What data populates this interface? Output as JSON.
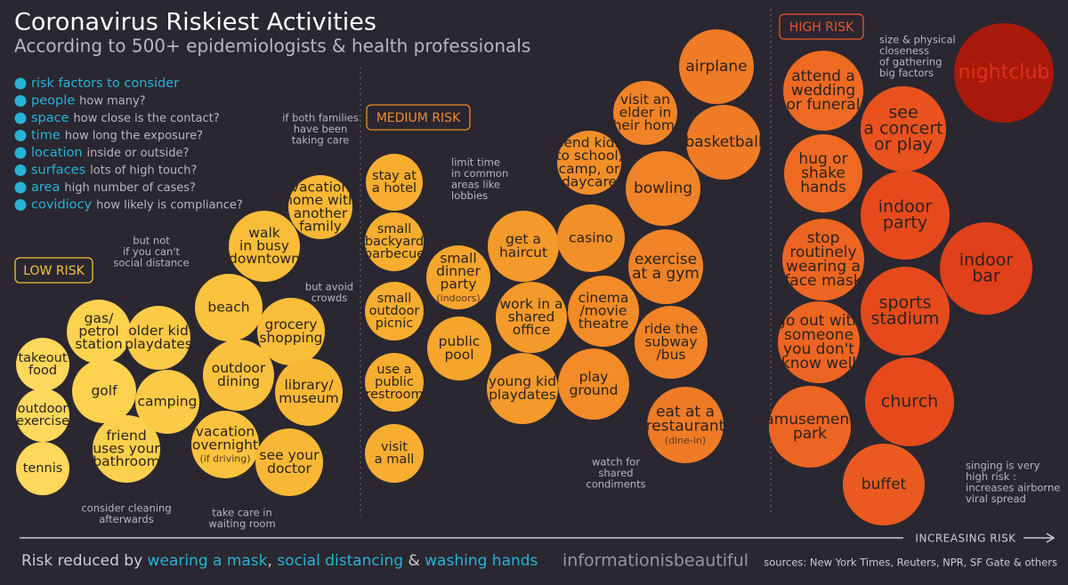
{
  "header": {
    "title": "Coronavirus Riskiest Activities",
    "subtitle": "According to 500+ epidemiologists & health professionals"
  },
  "risk_factors": {
    "heading": "risk factors to consider",
    "items": [
      {
        "term": "people",
        "desc": "how many?"
      },
      {
        "term": "space",
        "desc": "how close is the contact?"
      },
      {
        "term": "time",
        "desc": "how long the exposure?"
      },
      {
        "term": "location",
        "desc": "inside or outside?"
      },
      {
        "term": "surfaces",
        "desc": "lots of high touch?"
      },
      {
        "term": "area",
        "desc": "high number of cases?"
      },
      {
        "term": "covidiocy",
        "desc": "how likely is compliance?"
      }
    ]
  },
  "sections": [
    {
      "label": "LOW RISK",
      "bubbles": [
        {
          "lines": [
            "takeout",
            "food"
          ]
        },
        {
          "lines": [
            "outdoor",
            "exercise"
          ]
        },
        {
          "lines": [
            "tennis"
          ]
        },
        {
          "lines": [
            "gas/",
            "petrol",
            "station"
          ]
        },
        {
          "lines": [
            "golf"
          ]
        },
        {
          "lines": [
            "friend",
            "uses your",
            "bathroom"
          ]
        },
        {
          "lines": [
            "older kid",
            "playdates"
          ]
        },
        {
          "lines": [
            "camping"
          ]
        },
        {
          "lines": [
            "beach"
          ]
        },
        {
          "lines": [
            "walk",
            "in busy",
            "downtown"
          ]
        },
        {
          "lines": [
            "vacation",
            "home with",
            "another",
            "family"
          ]
        },
        {
          "lines": [
            "grocery",
            "shopping"
          ]
        },
        {
          "lines": [
            "outdoor",
            "dining"
          ]
        },
        {
          "lines": [
            "library/",
            "museum"
          ]
        },
        {
          "lines": [
            "vacation",
            "overnight"
          ],
          "note": "(if driving)"
        },
        {
          "lines": [
            "see your",
            "doctor"
          ]
        }
      ]
    },
    {
      "label": "MEDIUM RISK",
      "bubbles": [
        {
          "lines": [
            "stay at",
            "a hotel"
          ]
        },
        {
          "lines": [
            "small",
            "backyard",
            "barbecue"
          ]
        },
        {
          "lines": [
            "small",
            "outdoor",
            "picnic"
          ]
        },
        {
          "lines": [
            "use a",
            "public",
            "restroom"
          ]
        },
        {
          "lines": [
            "visit",
            "a mall"
          ]
        },
        {
          "lines": [
            "small",
            "dinner",
            "party"
          ],
          "note": "(indoors)"
        },
        {
          "lines": [
            "public",
            "pool"
          ]
        },
        {
          "lines": [
            "get a",
            "haircut"
          ]
        },
        {
          "lines": [
            "work in a",
            "shared",
            "office"
          ]
        },
        {
          "lines": [
            "young kid",
            "playdates"
          ]
        },
        {
          "lines": [
            "send kids",
            "to school,",
            "camp, or",
            "daycare"
          ]
        },
        {
          "lines": [
            "casino"
          ]
        },
        {
          "lines": [
            "cinema",
            "/movie",
            "theatre"
          ]
        },
        {
          "lines": [
            "play",
            "ground"
          ]
        },
        {
          "lines": [
            "visit an",
            "elder in",
            "their home"
          ]
        },
        {
          "lines": [
            "airplane"
          ]
        },
        {
          "lines": [
            "bowling"
          ]
        },
        {
          "lines": [
            "basketball"
          ]
        },
        {
          "lines": [
            "exercise",
            "at a gym"
          ]
        },
        {
          "lines": [
            "ride the",
            "subway",
            "/bus"
          ]
        },
        {
          "lines": [
            "eat at a",
            "restaurant"
          ],
          "note": "(dine-in)"
        }
      ]
    },
    {
      "label": "HIGH RISK",
      "bubbles": [
        {
          "lines": [
            "attend a",
            "wedding",
            "or funeral"
          ]
        },
        {
          "lines": [
            "hug or",
            "shake",
            "hands"
          ]
        },
        {
          "lines": [
            "stop",
            "routinely",
            "wearing a",
            "face mask"
          ]
        },
        {
          "lines": [
            "go out with",
            "someone",
            "you don't",
            "know well"
          ]
        },
        {
          "lines": [
            "amusement",
            "park"
          ]
        },
        {
          "lines": [
            "buffet"
          ]
        },
        {
          "lines": [
            "nightclub"
          ]
        },
        {
          "lines": [
            "see",
            "a concert",
            "or play"
          ]
        },
        {
          "lines": [
            "indoor",
            "party"
          ]
        },
        {
          "lines": [
            "sports",
            "stadium"
          ]
        },
        {
          "lines": [
            "church"
          ]
        },
        {
          "lines": [
            "indoor",
            "bar"
          ]
        }
      ]
    }
  ],
  "annotations": [
    {
      "lines": [
        "if both families",
        "have been",
        "taking care"
      ]
    },
    {
      "lines": [
        "but not",
        "if you can't",
        "social distance"
      ]
    },
    {
      "lines": [
        "but avoid",
        "crowds"
      ]
    },
    {
      "lines": [
        "consider cleaning",
        "afterwards"
      ]
    },
    {
      "lines": [
        "take care in",
        "waiting room"
      ]
    },
    {
      "lines": [
        "limit time",
        "in common",
        "areas like",
        "lobbies"
      ]
    },
    {
      "lines": [
        "watch for",
        "shared",
        "condiments"
      ]
    },
    {
      "lines": [
        "size & physical",
        "closeness",
        "of gathering",
        "big factors"
      ]
    },
    {
      "lines": [
        "singing is very",
        "high risk :",
        "increases airborne",
        "viral spread"
      ]
    }
  ],
  "axis_label": "INCREASING RISK",
  "footer": {
    "message": [
      "Risk reduced by ",
      "wearing a mask",
      ", ",
      "social distancing",
      " & ",
      "washing hands"
    ],
    "brand": "informationisbeautiful",
    "sources": "sources: New York Times, Reuters, NPR, SF Gate & others"
  }
}
